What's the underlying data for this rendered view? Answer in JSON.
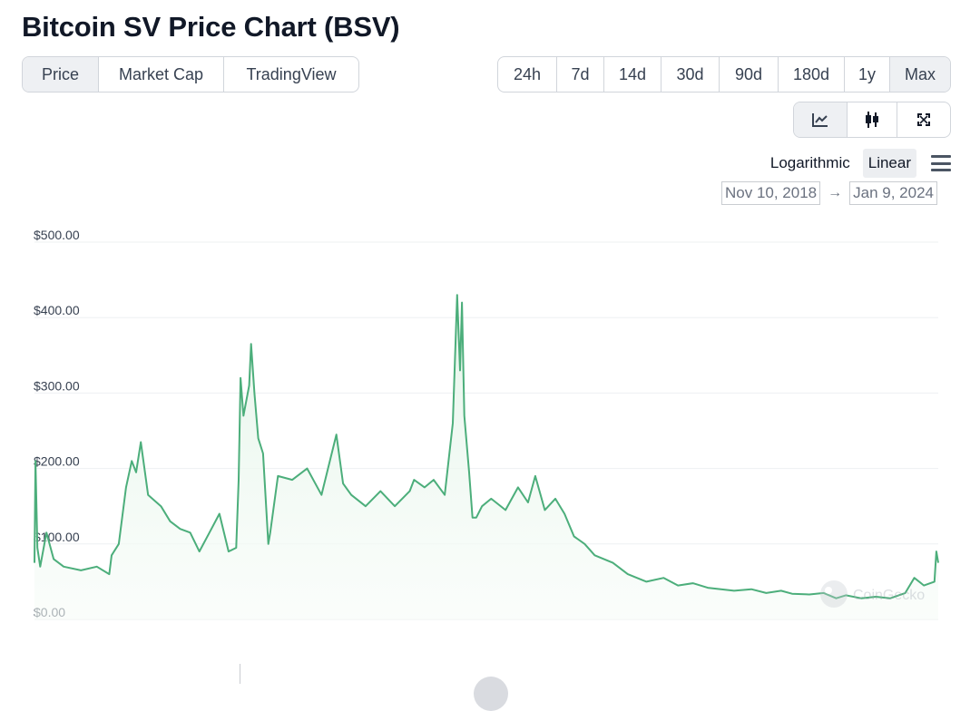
{
  "title": "Bitcoin SV Price Chart (BSV)",
  "view_tabs": [
    {
      "label": "Price",
      "active": true
    },
    {
      "label": "Market Cap",
      "active": false
    },
    {
      "label": "TradingView",
      "active": false
    }
  ],
  "range_tabs": [
    {
      "label": "24h",
      "active": false
    },
    {
      "label": "7d",
      "active": false
    },
    {
      "label": "14d",
      "active": false
    },
    {
      "label": "30d",
      "active": false
    },
    {
      "label": "90d",
      "active": false
    },
    {
      "label": "180d",
      "active": false
    },
    {
      "label": "1y",
      "active": false
    },
    {
      "label": "Max",
      "active": true
    }
  ],
  "chart_type_buttons": [
    {
      "icon": "line-chart-icon",
      "active": true
    },
    {
      "icon": "candlestick-icon",
      "active": false
    },
    {
      "icon": "fullscreen-icon",
      "active": false
    }
  ],
  "scale": {
    "logarithmic": "Logarithmic",
    "linear": "Linear",
    "active": "Linear"
  },
  "date_range": {
    "from": "Nov 10, 2018",
    "arrow": "→",
    "to": "Jan 9, 2024"
  },
  "watermark": "CoinGecko",
  "colors": {
    "line": "#4cae7b",
    "fill_top": "#e3f4e8",
    "grid": "#eef0f2",
    "accent": "#4cae7b"
  },
  "chart_data": {
    "type": "area",
    "yticks": [
      "$500.00",
      "$400.00",
      "$300.00",
      "$200.00",
      "$100.00",
      "$0.00"
    ],
    "ylim": [
      0,
      500
    ],
    "xlim": [
      "2018-11-10",
      "2024-01-09"
    ],
    "x": [
      "2018-11-10",
      "2018-11-12",
      "2018-11-16",
      "2018-11-22",
      "2018-12-05",
      "2018-12-20",
      "2019-01-10",
      "2019-02-15",
      "2019-03-20",
      "2019-04-15",
      "2019-04-20",
      "2019-05-05",
      "2019-05-20",
      "2019-06-01",
      "2019-06-10",
      "2019-06-20",
      "2019-07-05",
      "2019-08-01",
      "2019-08-20",
      "2019-09-10",
      "2019-10-01",
      "2019-10-20",
      "2019-11-10",
      "2019-12-01",
      "2019-12-20",
      "2020-01-05",
      "2020-01-10",
      "2020-01-14",
      "2020-01-20",
      "2020-02-01",
      "2020-02-05",
      "2020-02-12",
      "2020-02-20",
      "2020-03-01",
      "2020-03-12",
      "2020-03-16",
      "2020-04-01",
      "2020-05-01",
      "2020-06-01",
      "2020-07-01",
      "2020-08-01",
      "2020-08-15",
      "2020-09-01",
      "2020-10-01",
      "2020-11-01",
      "2020-12-01",
      "2021-01-01",
      "2021-01-10",
      "2021-02-01",
      "2021-02-20",
      "2021-03-15",
      "2021-04-01",
      "2021-04-10",
      "2021-04-16",
      "2021-04-20",
      "2021-04-25",
      "2021-05-05",
      "2021-05-12",
      "2021-05-20",
      "2021-06-01",
      "2021-06-20",
      "2021-07-20",
      "2021-08-15",
      "2021-09-05",
      "2021-09-20",
      "2021-10-10",
      "2021-11-01",
      "2021-11-20",
      "2021-12-10",
      "2022-01-01",
      "2022-01-22",
      "2022-03-01",
      "2022-04-01",
      "2022-05-10",
      "2022-06-15",
      "2022-07-15",
      "2022-08-15",
      "2022-09-15",
      "2022-11-09",
      "2022-12-15",
      "2023-01-15",
      "2023-02-15",
      "2023-03-10",
      "2023-04-15",
      "2023-05-15",
      "2023-06-10",
      "2023-06-30",
      "2023-08-01",
      "2023-09-01",
      "2023-10-01",
      "2023-11-01",
      "2023-11-20",
      "2023-12-10",
      "2024-01-01",
      "2024-01-05",
      "2024-01-09"
    ],
    "series": [
      {
        "values": [
          75,
          210,
          95,
          70,
          115,
          80,
          70,
          65,
          70,
          60,
          85,
          100,
          175,
          210,
          195,
          235,
          165,
          150,
          130,
          120,
          115,
          90,
          115,
          140,
          90,
          95,
          185,
          320,
          270,
          310,
          365,
          300,
          240,
          220,
          100,
          115,
          190,
          185,
          200,
          165,
          245,
          180,
          165,
          150,
          170,
          150,
          170,
          185,
          175,
          185,
          165,
          260,
          430,
          330,
          420,
          270,
          195,
          135,
          135,
          150,
          160,
          145,
          175,
          155,
          190,
          145,
          160,
          140,
          110,
          100,
          85,
          75,
          60,
          50,
          55,
          45,
          48,
          42,
          38,
          40,
          35,
          38,
          34,
          33,
          35,
          28,
          32,
          28,
          30,
          28,
          35,
          55,
          45,
          50,
          90,
          75
        ]
      }
    ]
  }
}
